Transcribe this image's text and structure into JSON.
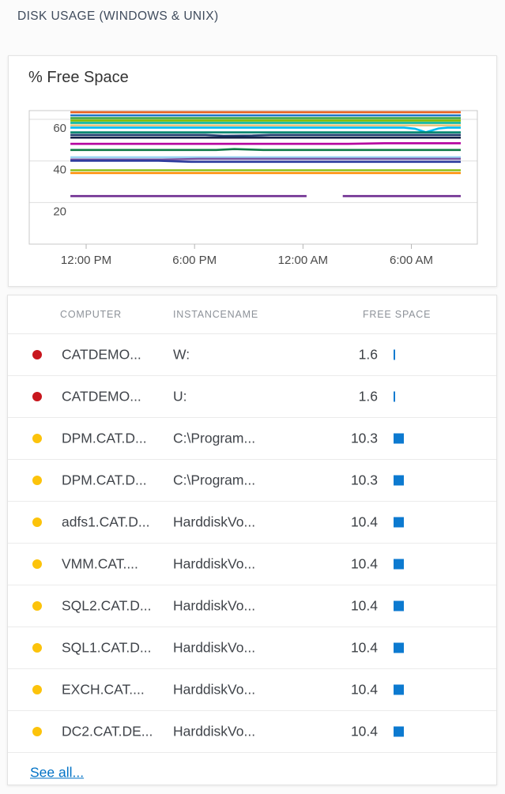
{
  "title": "DISK USAGE (WINDOWS & UNIX)",
  "chart_data": {
    "type": "line",
    "title": "% Free Space",
    "xlabel": "",
    "ylabel": "% Free Space",
    "grid": true,
    "legend": "none",
    "x_axis": {
      "unit": "time",
      "range_hours": [
        8.85,
        33.65
      ],
      "ticks": [
        {
          "hour": 12,
          "label": "12:00 PM"
        },
        {
          "hour": 18,
          "label": "6:00 PM"
        },
        {
          "hour": 24,
          "label": "12:00 AM"
        },
        {
          "hour": 30,
          "label": "6:00 AM"
        }
      ]
    },
    "y_axis": {
      "range": [
        0,
        64.2
      ],
      "ticks": [
        60,
        40,
        20
      ]
    },
    "series": [
      {
        "color": "#e8611f",
        "segments": [
          [
            [
              11.13,
              63.4
            ],
            [
              32.73,
              63.4
            ]
          ]
        ]
      },
      {
        "color": "#1e78c8",
        "segments": [
          [
            [
              11.13,
              61.9
            ],
            [
              32.73,
              61.9
            ]
          ]
        ]
      },
      {
        "color": "#3da43c",
        "segments": [
          [
            [
              11.13,
              60.6
            ],
            [
              32.73,
              60.6
            ]
          ]
        ]
      },
      {
        "color": "#7fba00",
        "segments": [
          [
            [
              11.13,
              59.4
            ],
            [
              32.73,
              59.4
            ]
          ]
        ]
      },
      {
        "color": "#00b294",
        "segments": [
          [
            [
              11.13,
              58.3
            ],
            [
              32.73,
              58.3
            ]
          ]
        ]
      },
      {
        "color": "#eac57e",
        "segments": [
          [
            [
              11.13,
              57.1
            ],
            [
              32.73,
              57.1
            ]
          ]
        ]
      },
      {
        "color": "#00bcf2",
        "segments": [
          [
            [
              11.13,
              56.0
            ],
            [
              29.6,
              56.0
            ],
            [
              30.2,
              55.5
            ],
            [
              30.8,
              53.8
            ],
            [
              31.5,
              55.6
            ],
            [
              32.0,
              56.0
            ],
            [
              32.73,
              56.0
            ]
          ]
        ]
      },
      {
        "color": "#00836d",
        "segments": [
          [
            [
              11.13,
              53.7
            ],
            [
              32.73,
              53.7
            ]
          ]
        ]
      },
      {
        "color": "#1e3c6e",
        "segments": [
          [
            [
              11.13,
              52.5
            ],
            [
              18.6,
              52.5
            ],
            [
              19.6,
              52.1
            ],
            [
              21.2,
              52.2
            ],
            [
              22.2,
              52.5
            ],
            [
              32.73,
              52.5
            ]
          ]
        ]
      },
      {
        "color": "#131f45",
        "segments": [
          [
            [
              11.13,
              51.2
            ],
            [
              32.73,
              51.2
            ]
          ]
        ]
      },
      {
        "color": "#b4009e",
        "segments": [
          [
            [
              11.13,
              48.2
            ],
            [
              26.5,
              48.2
            ],
            [
              28.5,
              48.5
            ],
            [
              32.73,
              48.5
            ]
          ]
        ]
      },
      {
        "color": "#0e7a46",
        "segments": [
          [
            [
              11.13,
              45.3
            ],
            [
              19.2,
              45.3
            ],
            [
              20.2,
              45.7
            ],
            [
              21.8,
              45.3
            ],
            [
              32.73,
              45.3
            ]
          ]
        ]
      },
      {
        "color": "#9ad5f2",
        "segments": [
          [
            [
              11.13,
              41.8
            ],
            [
              32.73,
              41.8
            ]
          ]
        ]
      },
      {
        "color": "#7a56a3",
        "segments": [
          [
            [
              11.13,
              40.7
            ],
            [
              16.2,
              40.7
            ],
            [
              18.2,
              41.0
            ],
            [
              32.73,
              41.0
            ]
          ]
        ]
      },
      {
        "color": "#2b3a9d",
        "segments": [
          [
            [
              11.13,
              40.1
            ],
            [
              16.0,
              40.1
            ],
            [
              17.8,
              39.6
            ],
            [
              32.73,
              39.6
            ]
          ]
        ]
      },
      {
        "color": "#8cbd18",
        "segments": [
          [
            [
              11.13,
              35.5
            ],
            [
              32.73,
              35.5
            ]
          ]
        ]
      },
      {
        "color": "#ff8c00",
        "segments": [
          [
            [
              11.13,
              34.2
            ],
            [
              32.73,
              34.2
            ]
          ]
        ]
      },
      {
        "color": "#6f2d91",
        "segments": [
          [
            [
              11.13,
              23.1
            ],
            [
              24.2,
              23.1
            ]
          ],
          [
            [
              26.2,
              23.1
            ],
            [
              32.73,
              23.1
            ]
          ]
        ]
      }
    ]
  },
  "table": {
    "columns": [
      "COMPUTER",
      "INSTANCENAME",
      "FREE SPACE"
    ],
    "status_colors": {
      "critical": "#c8161d",
      "warning": "#fcc30b"
    },
    "bar_color": "#0c7ad0",
    "rows": [
      {
        "status": "critical",
        "computer": "CATDEMO...",
        "instance": "W:",
        "free_space": "1.6"
      },
      {
        "status": "critical",
        "computer": "CATDEMO...",
        "instance": "U:",
        "free_space": "1.6"
      },
      {
        "status": "warning",
        "computer": "DPM.CAT.D...",
        "instance": "C:\\Program...",
        "free_space": "10.3"
      },
      {
        "status": "warning",
        "computer": "DPM.CAT.D...",
        "instance": "C:\\Program...",
        "free_space": "10.3"
      },
      {
        "status": "warning",
        "computer": "adfs1.CAT.D...",
        "instance": "HarddiskVo...",
        "free_space": "10.4"
      },
      {
        "status": "warning",
        "computer": "VMM.CAT....",
        "instance": "HarddiskVo...",
        "free_space": "10.4"
      },
      {
        "status": "warning",
        "computer": "SQL2.CAT.D...",
        "instance": "HarddiskVo...",
        "free_space": "10.4"
      },
      {
        "status": "warning",
        "computer": "SQL1.CAT.D...",
        "instance": "HarddiskVo...",
        "free_space": "10.4"
      },
      {
        "status": "warning",
        "computer": "EXCH.CAT....",
        "instance": "HarddiskVo...",
        "free_space": "10.4"
      },
      {
        "status": "warning",
        "computer": "DC2.CAT.DE...",
        "instance": "HarddiskVo...",
        "free_space": "10.4"
      }
    ],
    "see_all": "See all..."
  }
}
